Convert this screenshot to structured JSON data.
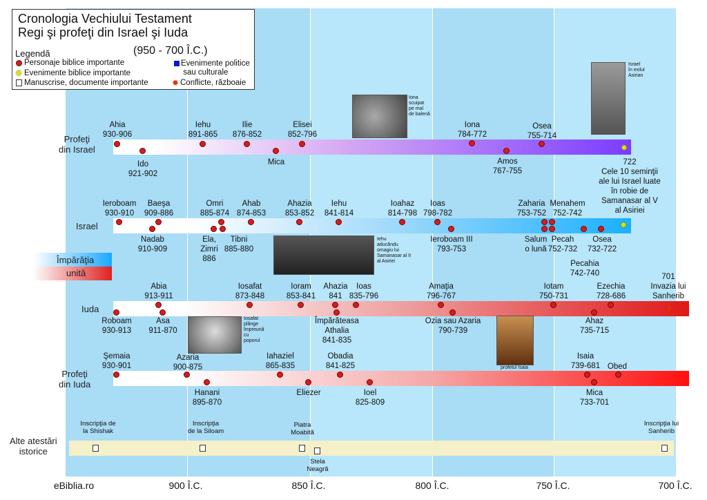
{
  "title": {
    "line1": "Cronologia Vechiului Testament",
    "line2": "Regi şi profeţi din Israel şi Iuda",
    "line3": "(950 - 700 Î.C.)"
  },
  "legend": {
    "heading": "Legendă",
    "items": [
      {
        "icon": "red-dot-icon",
        "label": "Personaje biblice importante"
      },
      {
        "icon": "star-icon",
        "label": "Evenimente biblice importante"
      },
      {
        "icon": "document-icon",
        "label": "Manuscrise, documente importante"
      },
      {
        "icon": "blue-square-icon",
        "label": "Evenimente politice\n sau culturale"
      },
      {
        "icon": "fire-icon",
        "label": "Conflicte, războaie"
      }
    ]
  },
  "colors": {
    "israel_prophets_band": "#7b3cff",
    "israel_band": "#1ab0ff",
    "iuda_band": "#e01818",
    "iuda_prophets_band": "#ff1010",
    "other_band": "#f5f0c8",
    "dot": "#d21e1e",
    "bg_blue": "#a9dcf5"
  },
  "rows": {
    "prophets_israel": "Profeţi\ndin Israel",
    "israel": "Israel",
    "iuda": "Iuda",
    "prophets_iuda": "Profeţi\ndin Iuda",
    "other": "Alte atestări\nistorice"
  },
  "united_kingdom": {
    "line1": "Împărăţia",
    "line2": "unită"
  },
  "axis": {
    "labels": [
      "900 Î.C.",
      "850 Î.C.",
      "800 Î.C.",
      "750 Î.C.",
      "700 Î.C."
    ],
    "source": "eBiblia.ro"
  },
  "prophets_israel": [
    {
      "name": "Ahia\n930-906"
    },
    {
      "name": "Ido\n921-902"
    },
    {
      "name": "Iehu\n891-865"
    },
    {
      "name": "Ilie\n876-852"
    },
    {
      "name": "Mica"
    },
    {
      "name": "Elisei\n852-796"
    },
    {
      "name": "Iona\n784-772"
    },
    {
      "name": "Amos\n767-755"
    },
    {
      "name": "Osea\n755-714"
    }
  ],
  "israel_exile_event": "722\nCele 10 seminţii\nale lui Israel luate\nîn robie de\nSamanasar al V\nal Asiriei",
  "israel_kings": [
    {
      "name": "Ieroboam\n930-910"
    },
    {
      "name": "Baeşa\n909-886"
    },
    {
      "name": "Nadab\n910-909"
    },
    {
      "name": "Omri\n885-874"
    },
    {
      "name": "Ela,\nZimri\n886"
    },
    {
      "name": "Tibni\n885-880"
    },
    {
      "name": "Ahab\n874-853"
    },
    {
      "name": "Ahazia\n853-852"
    },
    {
      "name": "Iehu\n841-814"
    },
    {
      "name": "Ioahaz\n814-798"
    },
    {
      "name": "Ioas\n798-782"
    },
    {
      "name": "Ieroboam III\n793-753"
    },
    {
      "name": "Zaharia\n753-752"
    },
    {
      "name": "Menahem\n752-742"
    },
    {
      "name": "Salum\no lună"
    },
    {
      "name": "Pecah\n752-732"
    },
    {
      "name": "Pecahia\n742-740"
    },
    {
      "name": "Osea\n732-722"
    }
  ],
  "iuda_kings": [
    {
      "name": "Roboam\n930-913"
    },
    {
      "name": "Abia\n913-911"
    },
    {
      "name": "Asa\n911-870"
    },
    {
      "name": "Iosafat\n873-848"
    },
    {
      "name": "Ioram\n853-841"
    },
    {
      "name": "Ahazia\n841"
    },
    {
      "name": "Ioas\n835-796"
    },
    {
      "name": "Împărăteasa\nAthalia\n841-835"
    },
    {
      "name": "Amaţia\n796-767"
    },
    {
      "name": "Ozia sau Azaria\n790-739"
    },
    {
      "name": "Iotam\n750-731"
    },
    {
      "name": "Ezechia\n728-686"
    },
    {
      "name": "Ahaz\n735-715"
    }
  ],
  "iuda_invasion_event": "701\nInvazia lui\nSanherib",
  "prophets_iuda": [
    {
      "name": "Şemaia\n930-901"
    },
    {
      "name": "Azaria\n900-875"
    },
    {
      "name": "Hanani\n895-870"
    },
    {
      "name": "Iahaziel\n865-835"
    },
    {
      "name": "Eliezer"
    },
    {
      "name": "Obadia\n841-825"
    },
    {
      "name": "Ioel\n825-809"
    },
    {
      "name": "Isaia\n739-681"
    },
    {
      "name": "Obed"
    },
    {
      "name": "Mica\n733-701"
    }
  ],
  "other_attestations": [
    {
      "name": "Inscripţia de\nla Shishak"
    },
    {
      "name": "Inscripţia\nde la Siloam"
    },
    {
      "name": "Piatra\nMoabită"
    },
    {
      "name": "Stela\nNeagră"
    },
    {
      "name": "Inscripţia lui\nSanherib"
    }
  ],
  "captions": {
    "iona": "Iona\nscuipat\npe mal\nde balenă",
    "israel_exile": "Israel\nîn exilul\nAsirian",
    "iehu": "Iehu\naducându\nomagiu lui\nSamanasar al II\nal Asiriei",
    "iosafat": "Iosafat\nplânge\nîmpreună\ncu\npoporul",
    "isaia": "profetul Isaia"
  }
}
